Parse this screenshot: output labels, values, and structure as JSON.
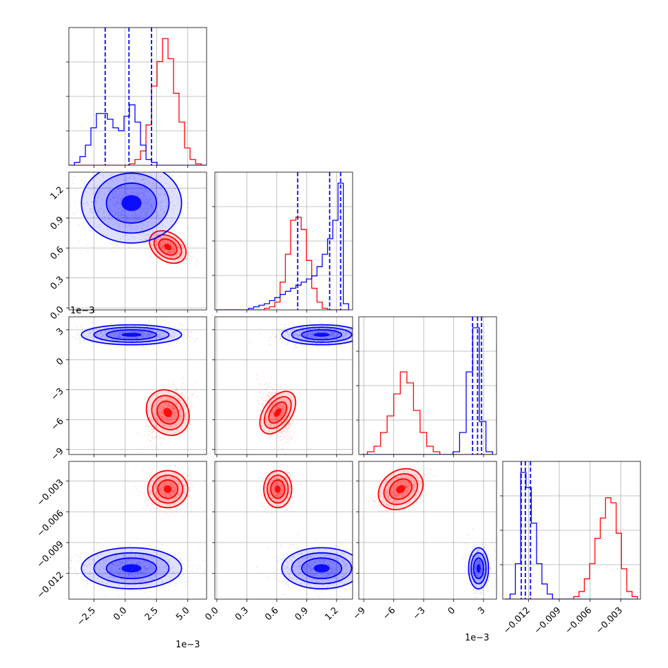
{
  "chart_data": {
    "type": "corner",
    "title": "",
    "series": [
      {
        "name": "red",
        "color": "#ff0000",
        "mean": [
          0.0034,
          0.61,
          -0.0053,
          -0.0038
        ],
        "std": [
          0.0008,
          0.07,
          0.0012,
          0.0009
        ],
        "hist": [
          {
            "range": [
              -0.0045,
              0.0065
            ],
            "counts": [
              0,
              0,
              0,
              0,
              0,
              0,
              0,
              0,
              0,
              0,
              0,
              1,
              4,
              10,
              28,
              55,
              72,
              88,
              74,
              50,
              30,
              12,
              4,
              1,
              0
            ]
          },
          {
            "range": [
              0.0,
              1.32
            ],
            "counts": [
              0,
              0,
              0,
              0,
              0,
              0,
              0,
              0,
              0,
              1,
              2,
              5,
              18,
              36,
              58,
              60,
              52,
              32,
              14,
              5,
              1,
              0,
              0,
              0,
              0
            ]
          },
          {
            "range": [
              -0.0093,
              0.0039
            ],
            "counts": [
              0,
              1,
              3,
              8,
              14,
              22,
              30,
              26,
              16,
              8,
              3,
              1,
              0,
              0,
              0,
              0,
              0,
              0,
              0,
              0
            ]
          },
          {
            "range": [
              -0.0143,
              -0.0014
            ],
            "counts": [
              0,
              0,
              0,
              0,
              0,
              0,
              0,
              0,
              0,
              0,
              0,
              0,
              0,
              1,
              3,
              8,
              14,
              24,
              32,
              40,
              38,
              26,
              12,
              3,
              1
            ]
          }
        ],
        "vlines": [
          [],
          [],
          [],
          []
        ]
      },
      {
        "name": "blue",
        "color": "#0000ff",
        "mean": [
          0.0005,
          1.05,
          0.0025,
          -0.0115
        ],
        "std": [
          0.002,
          0.2,
          0.0005,
          0.001
        ],
        "hist": [
          {
            "range": [
              -0.0045,
              0.0065
            ],
            "counts": [
              0,
              2,
              6,
              14,
              26,
              36,
              36,
              32,
              26,
              24,
              34,
              42,
              30,
              14,
              4,
              2,
              0,
              0,
              0,
              0,
              0,
              0,
              0,
              0,
              0
            ]
          },
          {
            "range": [
              0.0,
              1.32
            ],
            "counts": [
              0,
              0,
              0,
              0,
              0,
              0,
              1,
              2,
              3,
              4,
              6,
              8,
              10,
              12,
              14,
              16,
              18,
              20,
              22,
              28,
              36,
              46,
              58,
              82,
              4
            ]
          },
          {
            "range": [
              -0.0093,
              0.0039
            ],
            "counts": [
              0,
              0,
              0,
              0,
              0,
              0,
              0,
              0,
              0,
              0,
              0,
              0,
              0,
              0,
              1,
              8,
              30,
              46,
              12,
              1
            ]
          },
          {
            "range": [
              -0.0143,
              -0.0014
            ],
            "counts": [
              0,
              2,
              14,
              50,
              44,
              30,
              14,
              6,
              2,
              0,
              0,
              0,
              0,
              0,
              0,
              0,
              0,
              0,
              0,
              0,
              0,
              0,
              0,
              0,
              0
            ]
          }
        ],
        "vlines": [
          [
            -0.0016,
            0.0003,
            0.0021
          ],
          [
            0.81,
            1.13,
            1.24
          ],
          [
            0.0019,
            0.0024,
            0.0028
          ],
          [
            -0.0127,
            -0.0123,
            -0.0118
          ]
        ]
      }
    ],
    "axes": [
      {
        "range": [
          -0.0045,
          0.0065
        ],
        "ticks": [
          -0.0025,
          0.0,
          0.0025,
          0.005
        ],
        "tick_labels": [
          "−2.5",
          "0.0",
          "2.5",
          "5.0"
        ],
        "offset": "1e−3"
      },
      {
        "range": [
          -0.02,
          1.36
        ],
        "ticks": [
          0.0,
          0.3,
          0.6,
          0.9,
          1.2
        ],
        "tick_labels": [
          "0.0",
          "0.3",
          "0.6",
          "0.9",
          "1.2"
        ],
        "offset": ""
      },
      {
        "range": [
          -0.0095,
          0.0043
        ],
        "ticks": [
          -0.009,
          -0.006,
          -0.003,
          0.0,
          0.003
        ],
        "tick_labels": [
          "−9",
          "−6",
          "−3",
          "0",
          "3"
        ],
        "offset": "1e−3"
      },
      {
        "range": [
          -0.0145,
          -0.0011
        ],
        "ticks": [
          -0.012,
          -0.009,
          -0.006,
          -0.003
        ],
        "tick_labels": [
          "−0.012",
          "−0.009",
          "−0.006",
          "−0.003"
        ],
        "offset": ""
      }
    ],
    "grid": true,
    "xlabel": "",
    "ylabel": ""
  }
}
